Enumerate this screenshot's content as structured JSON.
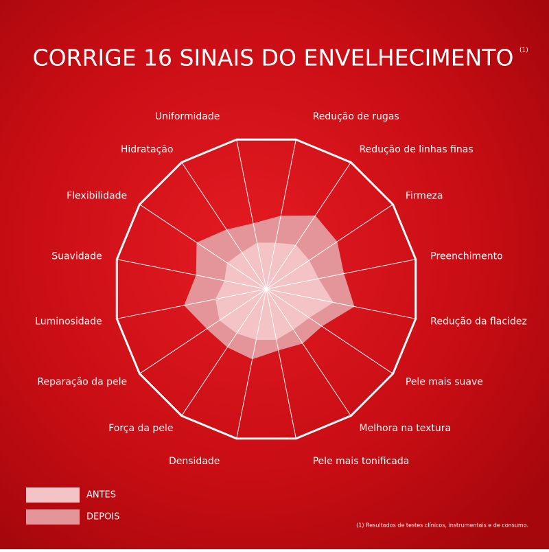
{
  "chart_data": {
    "type": "radar",
    "title": "CORRIGE 16 SINAIS DO ENVELHECIMENTO",
    "title_note": "(1)",
    "footnote": "(1) Resultados de testes clínicos, instrumentais e de consumo.",
    "categories": [
      "Redução de rugas",
      "Redução de linhas finas",
      "Firmeza",
      "Preenchimento",
      "Redução da flacidez",
      "Pele mais suave",
      "Melhora na textura",
      "Pele mais tonificada",
      "Densidade",
      "Força da pele",
      "Reparação da pele",
      "Luminosidade",
      "Suavidade",
      "Flexibilidade",
      "Hidratação",
      "Uniformidade"
    ],
    "rlim": [
      0,
      100
    ],
    "series": [
      {
        "name": "DEPOIS",
        "color": "#e4959a",
        "values": [
          49,
          58,
          56,
          52,
          59,
          44,
          43,
          41,
          47,
          46,
          47,
          55,
          47,
          55,
          47,
          44
        ]
      },
      {
        "name": "ANTES",
        "color": "#f3c3c6",
        "values": [
          31,
          35,
          34,
          35,
          45,
          34,
          32,
          34,
          34,
          35,
          37,
          34,
          28,
          31,
          29,
          31
        ]
      }
    ]
  }
}
